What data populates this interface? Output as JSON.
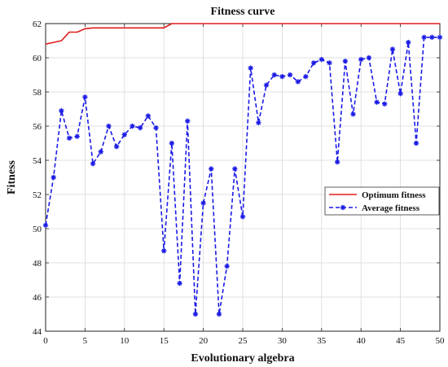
{
  "chart_data": {
    "type": "line",
    "title": "Fitness curve",
    "xlabel": "Evolutionary algebra",
    "ylabel": "Fitness",
    "xlim": [
      0,
      50
    ],
    "ylim": [
      44,
      62
    ],
    "xticks": [
      0,
      5,
      10,
      15,
      20,
      25,
      30,
      35,
      40,
      45,
      50
    ],
    "yticks": [
      44,
      46,
      48,
      50,
      52,
      54,
      56,
      58,
      60,
      62
    ],
    "grid": true,
    "legend_position": "right-middle",
    "series": [
      {
        "name": "Optimum fitness",
        "color": "#e01b1b",
        "line_style": "solid",
        "marker": "none",
        "x": [
          0,
          1,
          2,
          3,
          4,
          5,
          6,
          7,
          8,
          9,
          10,
          11,
          12,
          13,
          14,
          15,
          16,
          17,
          18,
          19,
          20,
          21,
          22,
          23,
          24,
          25,
          26,
          27,
          28,
          29,
          30,
          31,
          32,
          33,
          34,
          35,
          36,
          37,
          38,
          39,
          40,
          41,
          42,
          43,
          44,
          45,
          46,
          47,
          48,
          49,
          50
        ],
        "y": [
          60.8,
          60.9,
          61.0,
          61.5,
          61.5,
          61.7,
          61.75,
          61.75,
          61.75,
          61.75,
          61.75,
          61.75,
          61.75,
          61.75,
          61.75,
          61.75,
          62.0,
          62.0,
          62.0,
          62.0,
          62.0,
          62.0,
          62.0,
          62.0,
          62.0,
          62.0,
          62.0,
          62.0,
          62.0,
          62.0,
          62.0,
          62.0,
          62.0,
          62.0,
          62.0,
          62.0,
          62.0,
          62.0,
          62.0,
          62.0,
          62.0,
          62.0,
          62.0,
          62.0,
          62.0,
          62.0,
          62.0,
          62.0,
          62.0,
          62.0,
          62.0
        ]
      },
      {
        "name": "Average fitness",
        "color": "#1a1ae6",
        "line_style": "dashed",
        "marker": "asterisk",
        "x": [
          0,
          1,
          2,
          3,
          4,
          5,
          6,
          7,
          8,
          9,
          10,
          11,
          12,
          13,
          14,
          15,
          16,
          17,
          18,
          19,
          20,
          21,
          22,
          23,
          24,
          25,
          26,
          27,
          28,
          29,
          30,
          31,
          32,
          33,
          34,
          35,
          36,
          37,
          38,
          39,
          40,
          41,
          42,
          43,
          44,
          45,
          46,
          47,
          48,
          49,
          50
        ],
        "y": [
          50.2,
          53.0,
          56.9,
          55.3,
          55.4,
          57.7,
          53.8,
          54.5,
          56.0,
          54.8,
          55.5,
          56.0,
          55.9,
          56.6,
          55.9,
          48.7,
          55.0,
          46.8,
          56.3,
          45.0,
          51.5,
          53.5,
          45.0,
          47.8,
          53.5,
          50.7,
          59.4,
          56.2,
          58.4,
          59.0,
          58.9,
          59.0,
          58.6,
          58.9,
          59.7,
          59.9,
          59.7,
          53.9,
          59.8,
          56.7,
          59.9,
          60.0,
          57.4,
          57.3,
          60.5,
          57.9,
          60.9,
          55.0,
          61.2,
          61.2,
          61.2
        ]
      }
    ]
  }
}
